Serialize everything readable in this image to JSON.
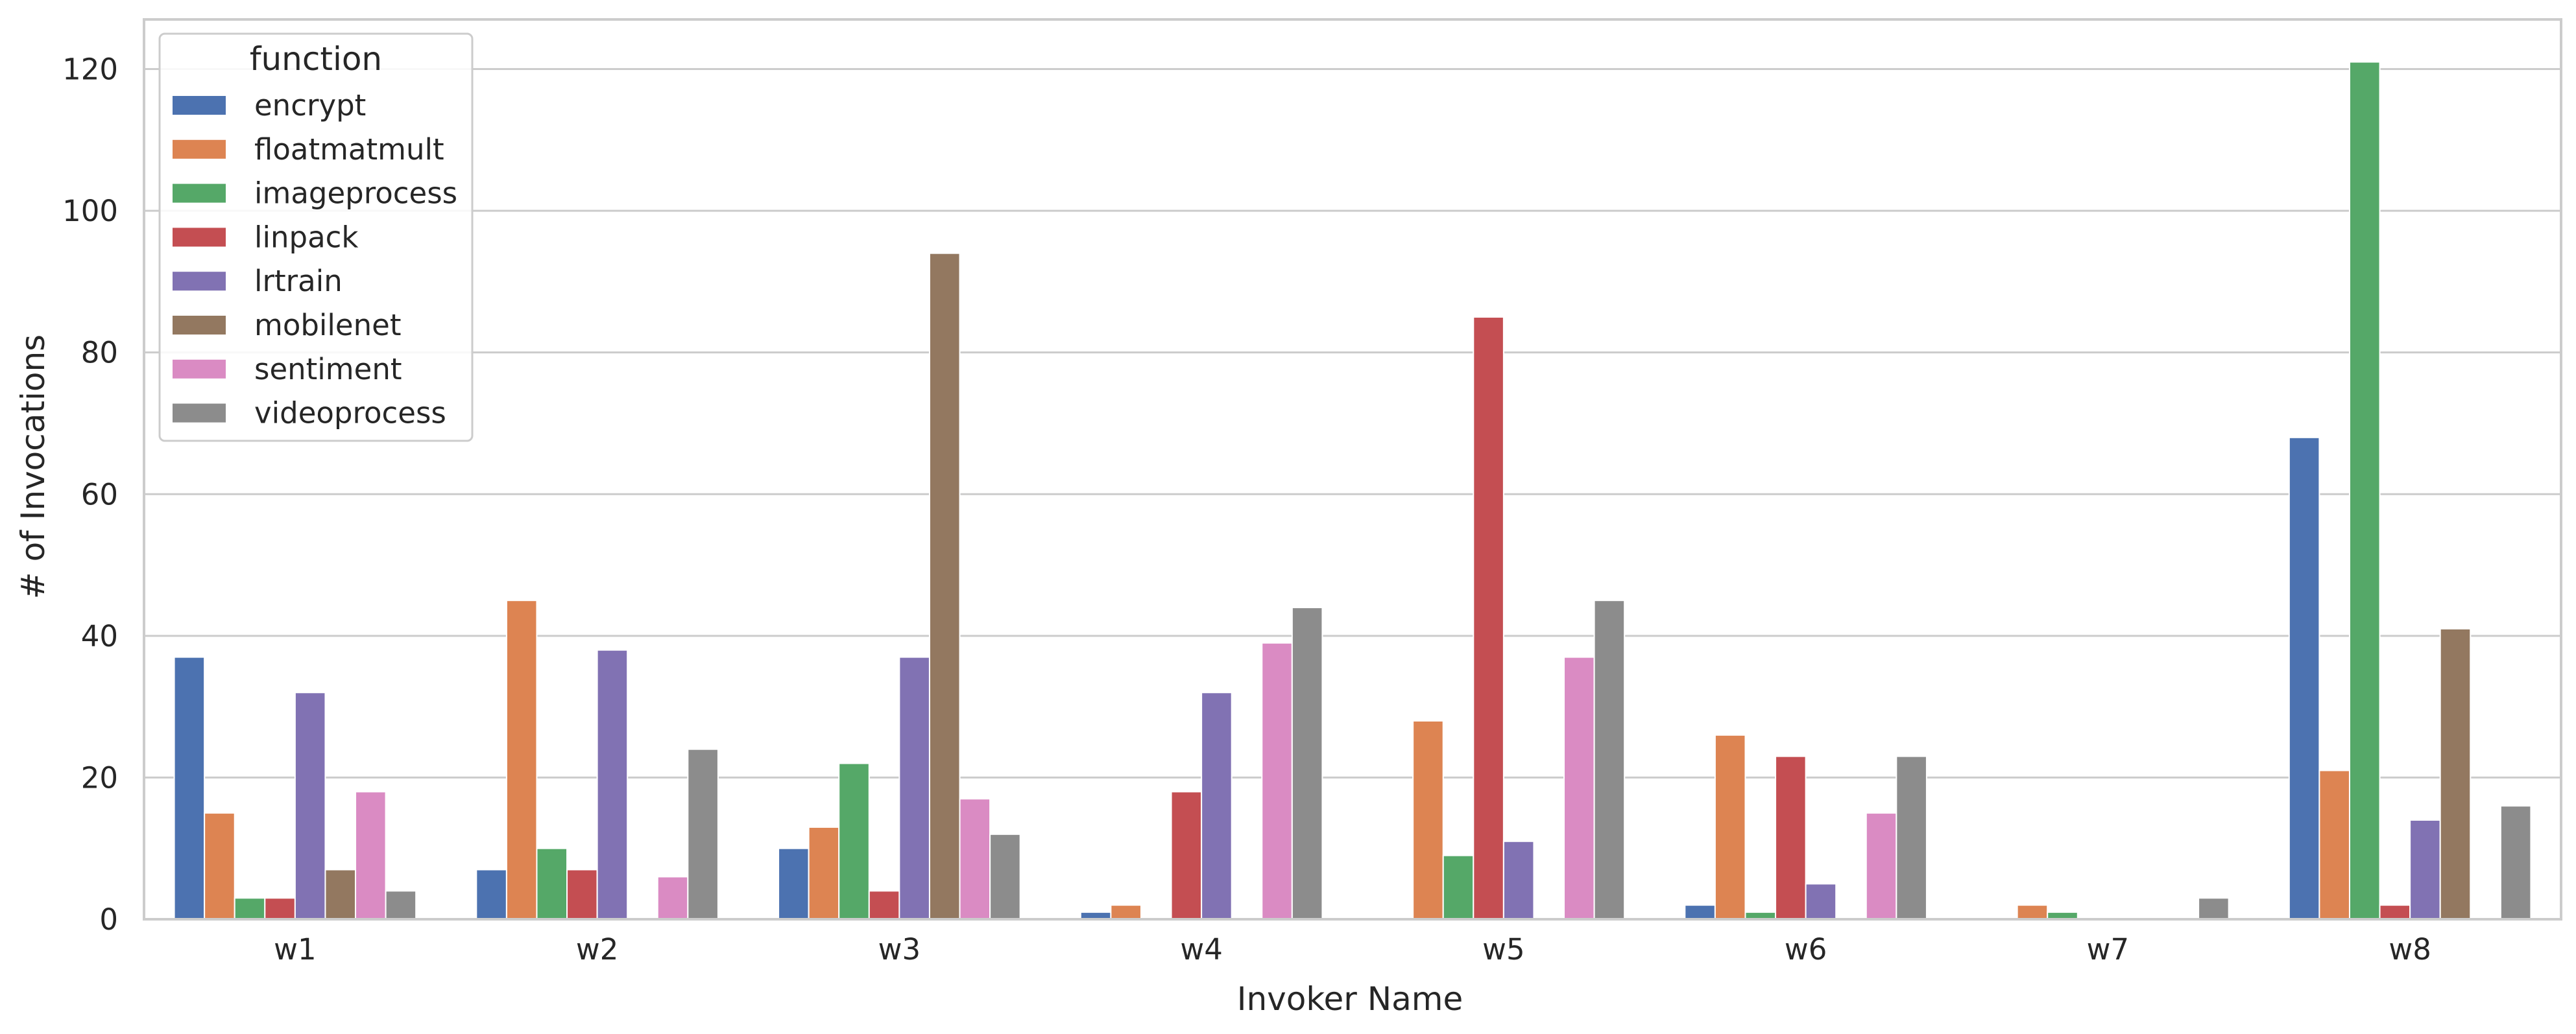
{
  "chart_data": {
    "type": "bar",
    "xlabel": "Invoker Name",
    "ylabel": "# of Invocations",
    "ylim": [
      0,
      127
    ],
    "yticks": [
      0,
      20,
      40,
      60,
      80,
      100,
      120
    ],
    "grid": "horizontal",
    "legend": {
      "title": "function",
      "placement": "top-left"
    },
    "categories": [
      "w1",
      "w2",
      "w3",
      "w4",
      "w5",
      "w6",
      "w7",
      "w8"
    ],
    "series": [
      {
        "name": "encrypt",
        "color": "#4c72b0",
        "values": [
          37,
          7,
          10,
          1,
          0,
          2,
          0,
          68
        ]
      },
      {
        "name": "floatmatmult",
        "color": "#dd8452",
        "values": [
          15,
          45,
          13,
          2,
          28,
          26,
          2,
          21
        ]
      },
      {
        "name": "imageprocess",
        "color": "#55a868",
        "values": [
          3,
          10,
          22,
          0,
          9,
          1,
          1,
          121
        ]
      },
      {
        "name": "linpack",
        "color": "#c44e52",
        "values": [
          3,
          7,
          4,
          18,
          85,
          23,
          0,
          2
        ]
      },
      {
        "name": "lrtrain",
        "color": "#8172b3",
        "values": [
          32,
          38,
          37,
          32,
          11,
          5,
          0,
          14
        ]
      },
      {
        "name": "mobilenet",
        "color": "#937860",
        "values": [
          7,
          0,
          94,
          0,
          0,
          0,
          0,
          41
        ]
      },
      {
        "name": "sentiment",
        "color": "#da8bc3",
        "values": [
          18,
          6,
          17,
          39,
          37,
          15,
          0,
          0
        ]
      },
      {
        "name": "videoprocess",
        "color": "#8c8c8c",
        "values": [
          4,
          24,
          12,
          44,
          45,
          23,
          3,
          16
        ]
      }
    ]
  }
}
